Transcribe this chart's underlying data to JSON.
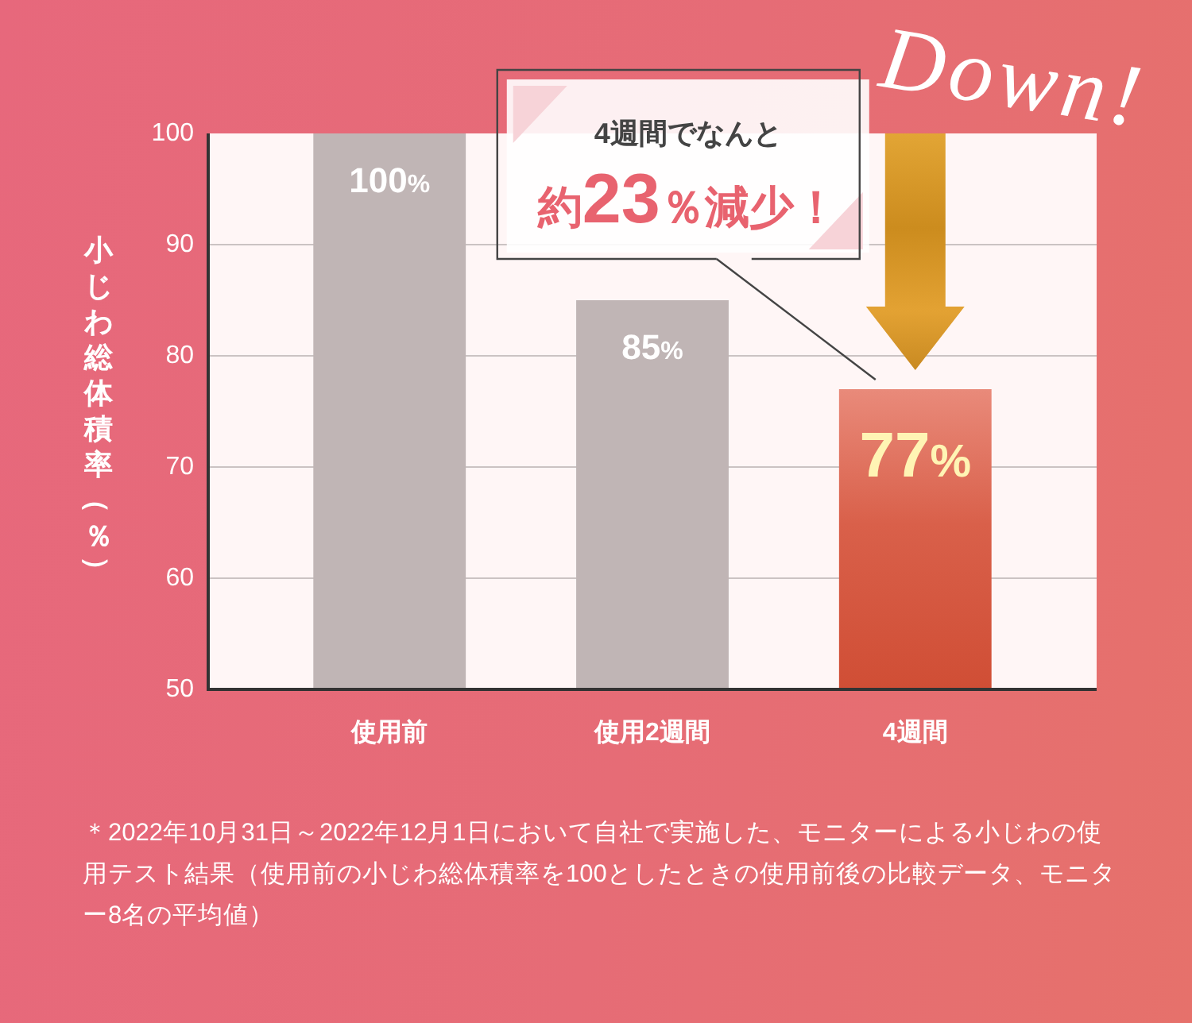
{
  "chart_data": {
    "type": "bar",
    "categories": [
      "使用前",
      "使用2週間",
      "4週間"
    ],
    "values": [
      100,
      85,
      77
    ],
    "colors": [
      "#c0b5b5",
      "#c0b5b5",
      "#d9604a"
    ],
    "value_labels": [
      "100%",
      "85%",
      "77%"
    ],
    "ylabel": "小じわ総体積率（％）",
    "ylim": [
      50,
      100
    ],
    "yticks": [
      50,
      60,
      70,
      80,
      90,
      100
    ],
    "grid": "y",
    "annotations": [
      "4週間でなんと",
      {
        "text": "約23％減少！",
        "x": "4週間",
        "y": 77
      },
      "Down!",
      "＊2022年10月31日～2022年12月1日において自社で実施した、モニターによる小じわの使用テスト結果（使用前の小じわ総体積率を100としたときの使用前後の比較データ、モニター8名の平均値）"
    ]
  }
}
